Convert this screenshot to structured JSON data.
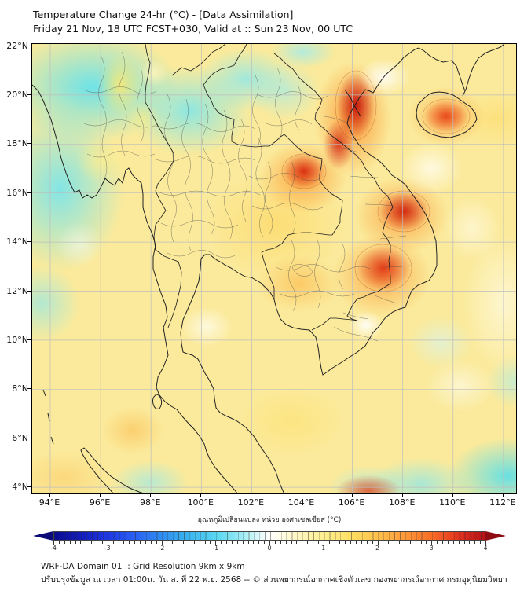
{
  "header": {
    "title": "Temperature Change 24-hr (°C) - [Data Assimilation]",
    "subtitle": "Friday 21 Nov, 18 UTC FCST+030, Valid at :: Sun 23 Nov, 00 UTC"
  },
  "map": {
    "x_axis_labels": [
      "94°E",
      "96°E",
      "98°E",
      "100°E",
      "102°E",
      "104°E",
      "106°E",
      "108°E",
      "110°E",
      "112°E"
    ],
    "y_axis_labels": [
      "22°N",
      "20°N",
      "18°N",
      "16°N",
      "14°N",
      "12°N",
      "10°N",
      "8°N",
      "6°N",
      "4°N"
    ]
  },
  "colorbar": {
    "label": "อุณหภูมิเปลี่ยนแปลง หน่วย องศาเซลเซียส (°C)",
    "tick_labels": [
      "-4",
      "-3",
      "-2",
      "-1",
      "0",
      "1",
      "2",
      "3",
      "4"
    ],
    "range_min": -4,
    "range_max": 4,
    "negative_end_color": "#0a0a8f",
    "zero_color": "#ffffff",
    "positive_end_color": "#b51218"
  },
  "footer": {
    "line1": "WRF-DA Domain 01 :: Grid Resolution 9km x 9km",
    "line2": "ปรับปรุงข้อมูล ณ เวลา 01:00น. วัน ส. ที่ 22 พ.ย. 2568 -- © ส่วนพยากรณ์อากาศเชิงตัวเลข กองพยากรณ์อากาศ กรมอุตุนิยมวิทยา"
  }
}
